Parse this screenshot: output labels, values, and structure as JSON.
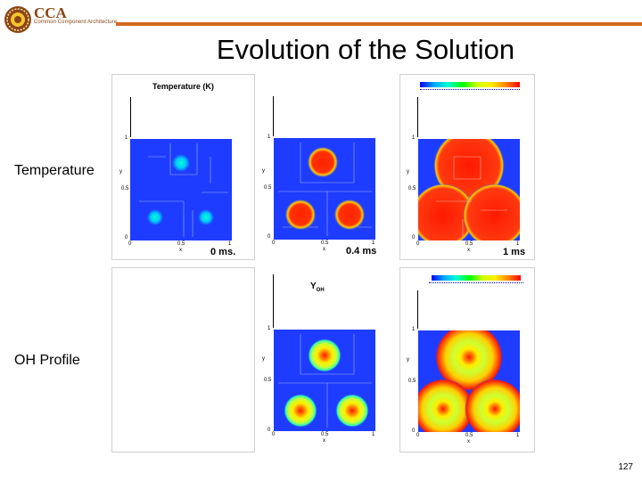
{
  "header": {
    "brand": "CCA",
    "tagline": "Common Component Architecture"
  },
  "slide": {
    "title": "Evolution of the Solution",
    "page_number": "127"
  },
  "rows": {
    "temperature": {
      "label": "Temperature",
      "plot_title": "Temperature (K)",
      "times": [
        "0 ms.",
        "0.4 ms",
        "1 ms"
      ]
    },
    "oh": {
      "label": "OH Profile",
      "plot_title": "Y",
      "plot_title_sub": "OH"
    }
  },
  "axes": {
    "y_ticks": [
      "1",
      "0.5",
      "0"
    ],
    "x_ticks": [
      "0",
      "0.5",
      "1"
    ],
    "x_label": "x",
    "y_label": "y"
  },
  "colors": {
    "background_field": "#1e3cff",
    "hot": "#ff2200",
    "rule": "#d2691e",
    "brand": "#8b4513"
  }
}
